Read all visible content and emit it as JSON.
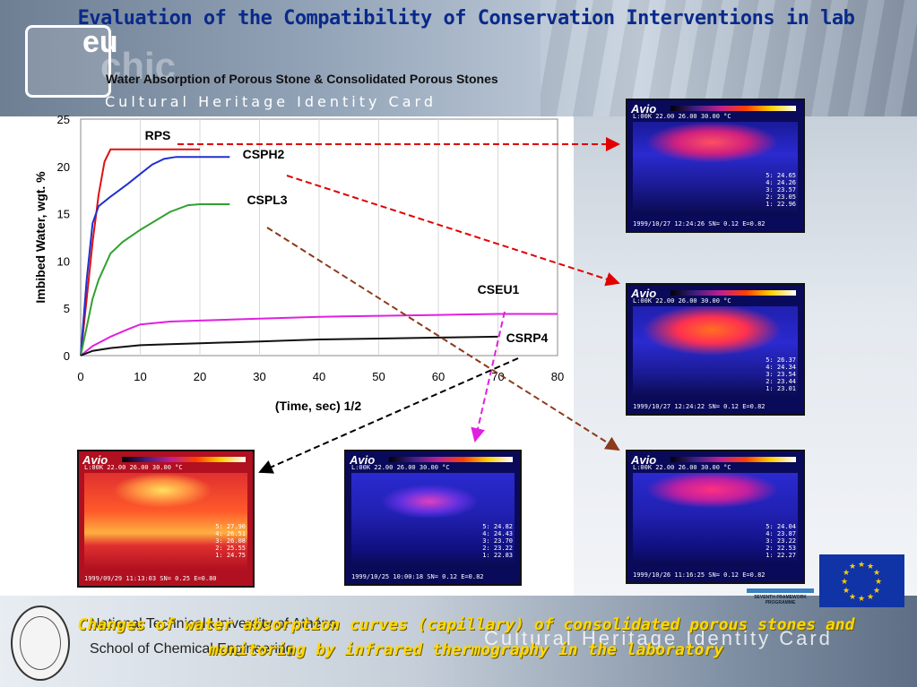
{
  "title": "Evaluation of the Compatibility of Conservation Interventions in lab",
  "logo": {
    "eu": "eu",
    "chic": "chic"
  },
  "subtitle": "Water Absorption of Porous Stone & Consolidated Porous Stones",
  "cultural_heritage": "Cultural Heritage Identity Card",
  "footer": {
    "institution_line1": "National Technical University of Athens,",
    "institution_line2": "School of Chemical Engineering",
    "caption": "Changes of water absorption curves (capillary) of consolidated porous stones and monitoring by infrared thermography in the laboratory",
    "fp7_label": "SEVENTH FRAMEWORK PROGRAMME",
    "bottom_chi": "Cultural Heritage Identity Card"
  },
  "colors": {
    "title": "#0a2a8a",
    "caption": "#ffd800",
    "arrow_red": "#e00000",
    "arrow_brown": "#8b3a1a",
    "arrow_magenta": "#e020e0",
    "arrow_black": "#000000"
  },
  "thermo": [
    {
      "brand": "Avio",
      "scale": "L:00K  22.00  26.00  30.00 °C",
      "mode": "RD PLY 3M FST",
      "footer": "1999/10/27  12:24:26  SN=  0.12 E=0.82",
      "readings": [
        "5: 24.65",
        "4: 24.26",
        "3: 23.57",
        "2: 23.05",
        "1: 22.96"
      ]
    },
    {
      "brand": "Avio",
      "scale": "L:00K  22.00  26.00  30.00 °C",
      "mode": "RD PLY 3M FST",
      "footer": "1999/10/27  12:24:22  SN=  0.12 E=0.82",
      "readings": [
        "5: 26.37",
        "4: 24.34",
        "3: 23.54",
        "2: 23.44",
        "1: 23.01"
      ]
    },
    {
      "brand": "Avio",
      "scale": "L:00K  22.00  26.00  30.00 °C",
      "mode": "RD PLY 3M FST",
      "footer": "1999/10/26  11:16:25  SN=  0.12 E=0.82",
      "readings": [
        "5: 24.04",
        "4: 23.87",
        "3: 23.22",
        "2: 22.53",
        "1: 22.27"
      ]
    },
    {
      "brand": "Avio",
      "scale": "L:00K  22.00  26.00  30.00 °C",
      "mode": "RD PLY 3M FST",
      "footer": "1999/10/25  10:00:18  SN=  0.12 E=0.82",
      "readings": [
        "5: 24.82",
        "4: 24.43",
        "3: 23.70",
        "2: 23.22",
        "1: 22.83"
      ]
    },
    {
      "brand": "Avio",
      "scale": "L:00K  22.00  26.00  30.00 °C",
      "mode": "RD PLY 3M FST",
      "footer": "1999/09/29  11:13:03  SN=  0.25 E=0.80",
      "readings": [
        "5: 27.90",
        "4: 26.51",
        "3: 26.08",
        "2: 25.55",
        "1: 24.75"
      ]
    }
  ],
  "chart_data": {
    "type": "line",
    "xlabel": "(Time, sec) 1/2",
    "ylabel": "Imbibed Water, wgt. %",
    "xlim": [
      0,
      80
    ],
    "ylim": [
      0,
      25
    ],
    "xticks": [
      0,
      10,
      20,
      30,
      40,
      50,
      60,
      70,
      80
    ],
    "yticks": [
      0,
      5,
      10,
      15,
      20,
      25
    ],
    "grid": "vertical",
    "series": [
      {
        "name": "RPS",
        "color": "#e01010",
        "x": [
          0,
          1,
          2,
          3,
          4,
          5,
          6,
          10,
          15,
          20
        ],
        "y": [
          0,
          6,
          12,
          17,
          20.5,
          21.8,
          21.8,
          21.8,
          21.8,
          21.8
        ]
      },
      {
        "name": "CSPH2",
        "color": "#2030d0",
        "x": [
          0,
          1,
          2,
          3,
          5,
          8,
          10,
          12,
          14,
          16,
          20,
          25
        ],
        "y": [
          0,
          8,
          14,
          15.8,
          16.8,
          18.2,
          19.2,
          20.2,
          20.8,
          21.0,
          21.0,
          21.0
        ]
      },
      {
        "name": "CSPL3",
        "color": "#30a030",
        "x": [
          0,
          1,
          2,
          3,
          5,
          7,
          10,
          15,
          18,
          20,
          25
        ],
        "y": [
          0,
          3,
          6,
          8,
          10.8,
          12,
          13.3,
          15.2,
          15.9,
          16.0,
          16.0
        ]
      },
      {
        "name": "CSEU1",
        "color": "#e020e0",
        "x": [
          0,
          2,
          5,
          8,
          10,
          15,
          20,
          30,
          40,
          50,
          60,
          70,
          80
        ],
        "y": [
          0,
          1,
          2,
          2.8,
          3.3,
          3.6,
          3.7,
          3.9,
          4.1,
          4.2,
          4.3,
          4.4,
          4.4
        ]
      },
      {
        "name": "CSRP4",
        "color": "#101010",
        "x": [
          0,
          2,
          5,
          10,
          15,
          20,
          30,
          40,
          50,
          60,
          70
        ],
        "y": [
          0,
          0.5,
          0.8,
          1.1,
          1.2,
          1.3,
          1.5,
          1.7,
          1.8,
          1.9,
          2.0
        ]
      }
    ]
  }
}
